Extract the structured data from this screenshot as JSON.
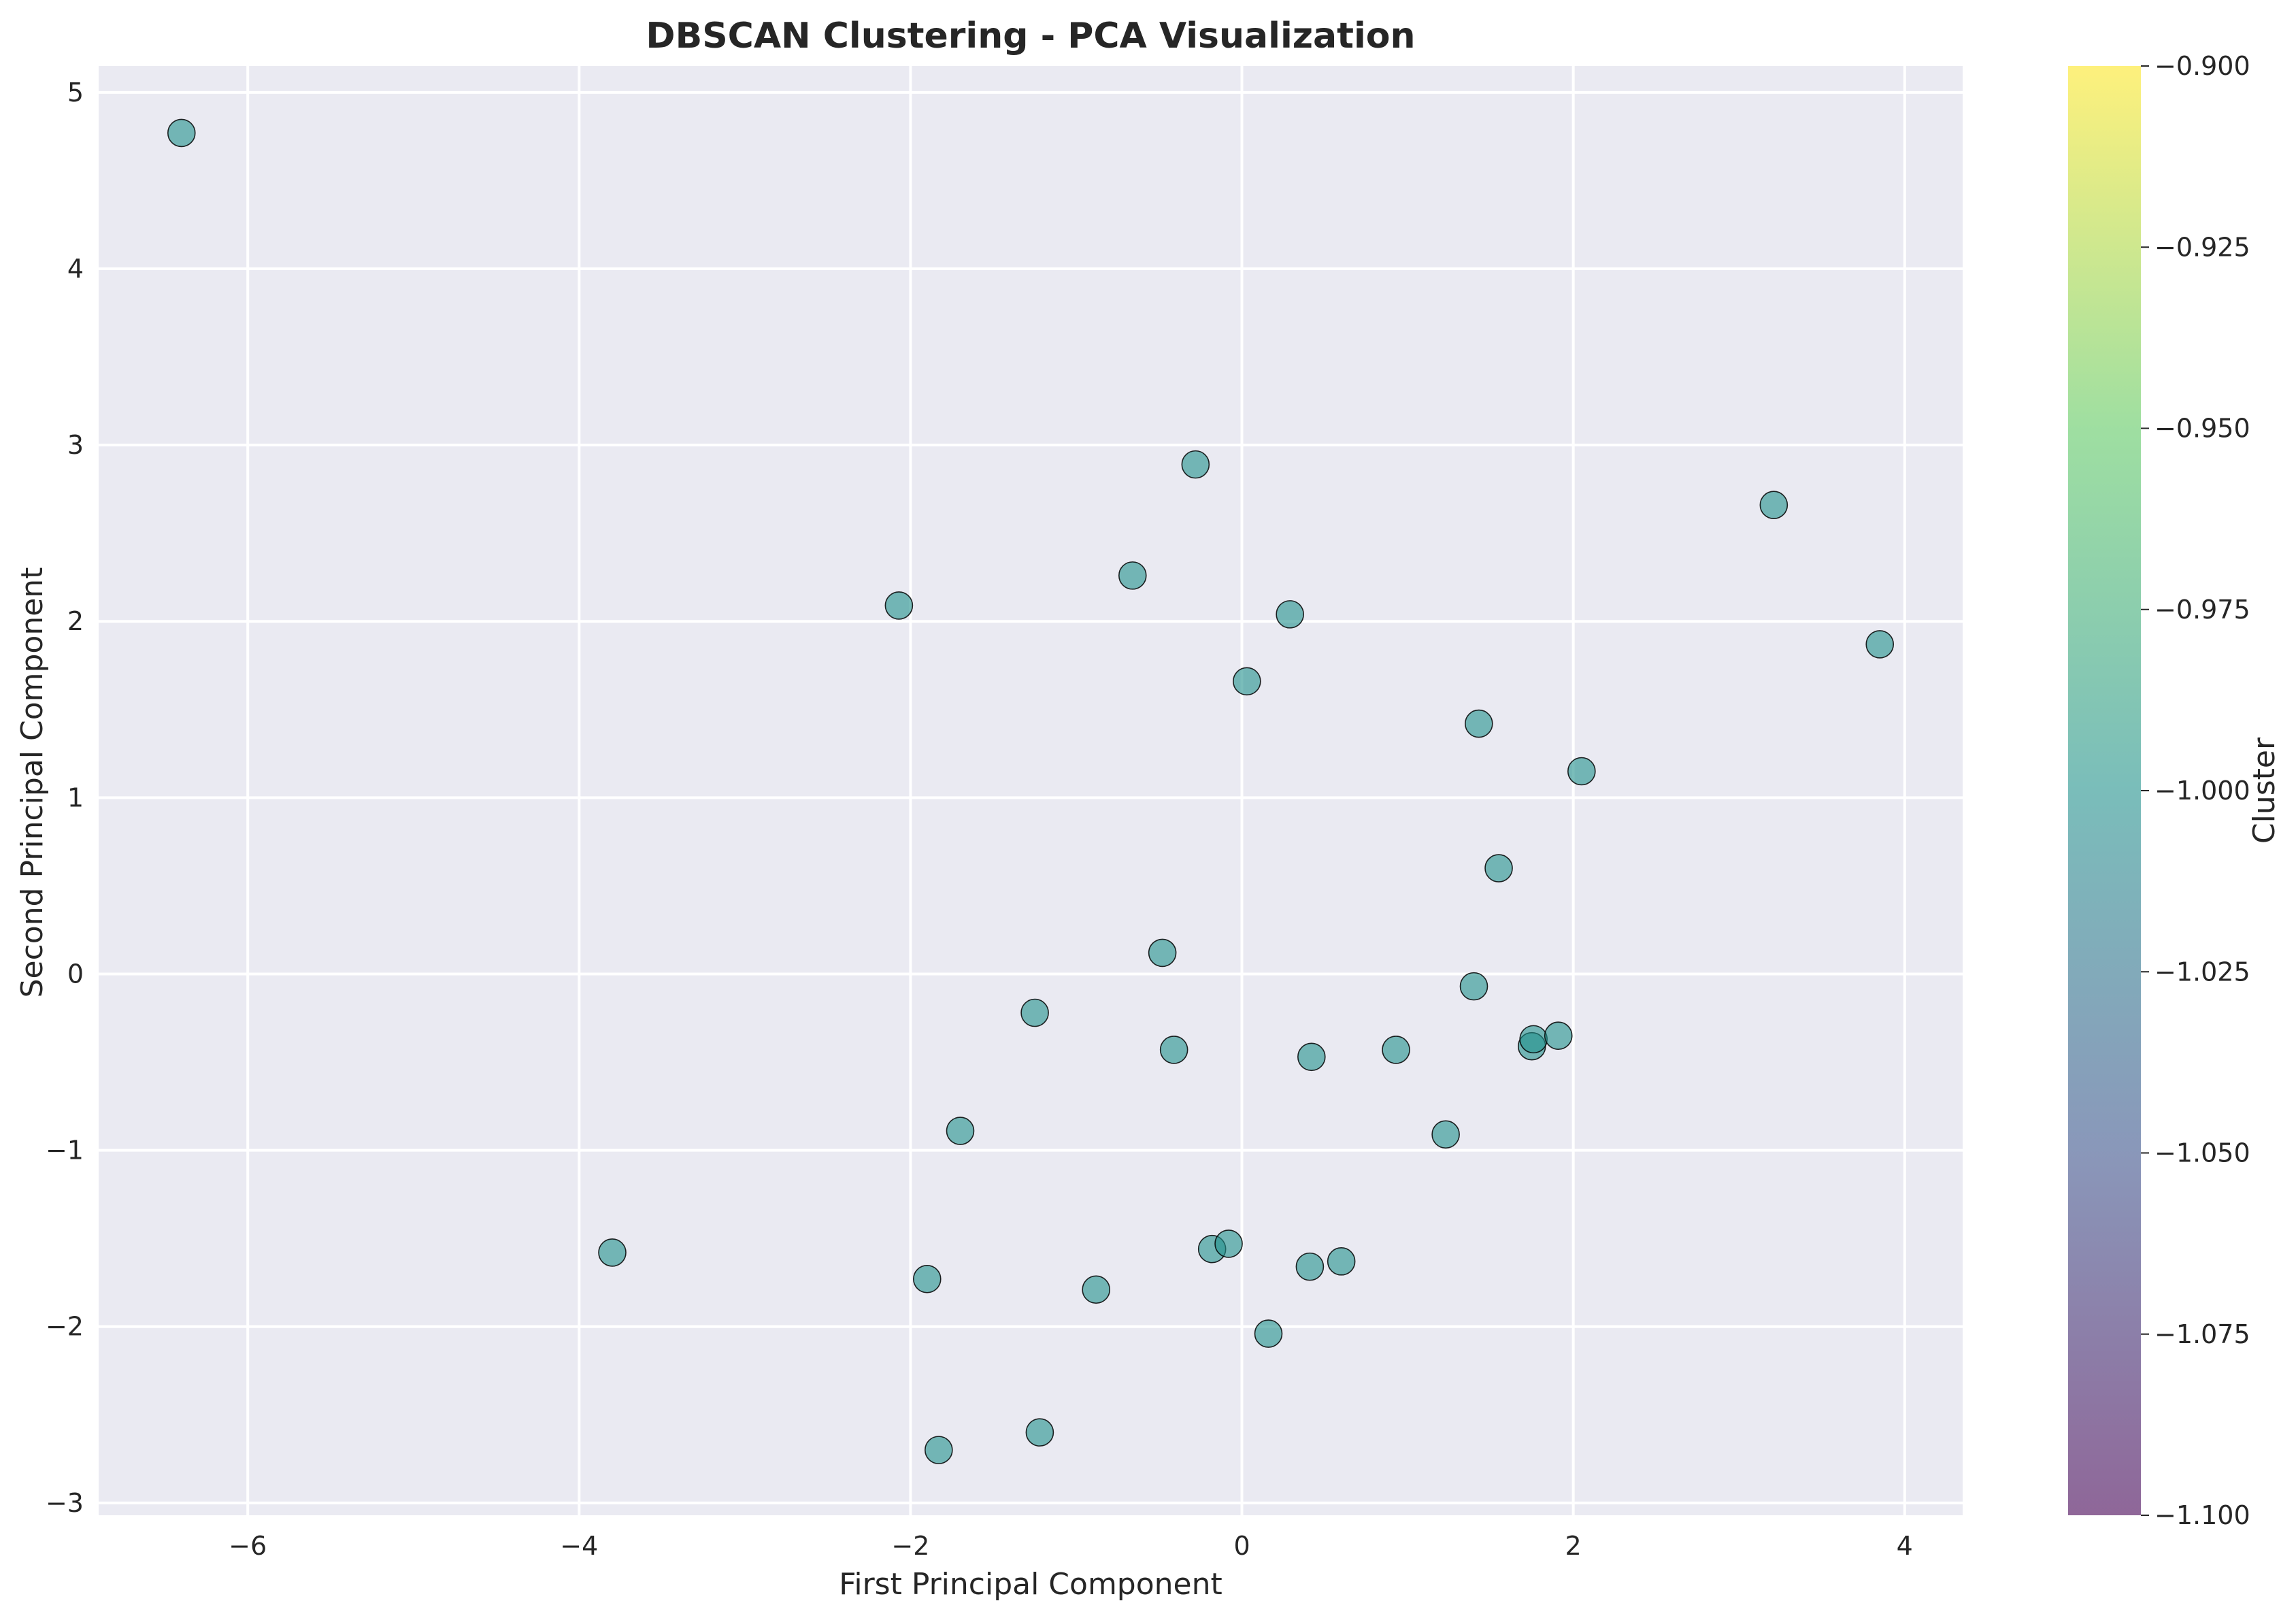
{
  "chart_data": {
    "type": "scatter",
    "title": "DBSCAN Clustering - PCA Visualization",
    "xlabel": "First Principal Component",
    "ylabel": "Second Principal Component",
    "xlim": [
      -6.9,
      4.35
    ],
    "ylim": [
      -3.07,
      5.15
    ],
    "xticks": [
      -6,
      -4,
      -2,
      0,
      2,
      4
    ],
    "yticks": [
      -3,
      -2,
      -1,
      0,
      1,
      2,
      3,
      4,
      5
    ],
    "grid": true,
    "legend": "none",
    "point_color": "#21918c",
    "plot_background": "#eaeaf2",
    "colorbar": {
      "label": "Cluster",
      "range": [
        -1.1,
        -0.9
      ],
      "ticks": [
        "-0.900",
        "-0.925",
        "-0.950",
        "-0.975",
        "-1.000",
        "-1.025",
        "-1.050",
        "-1.075",
        "-1.100"
      ],
      "tick_values": [
        -0.9,
        -0.925,
        -0.95,
        -0.975,
        -1.0,
        -1.025,
        -1.05,
        -1.075,
        -1.1
      ],
      "colormap": "viridis",
      "colors": [
        "#440154",
        "#3b528b",
        "#21918c",
        "#5ec962",
        "#fde725"
      ]
    },
    "points": [
      {
        "x": -6.4,
        "y": 4.77
      },
      {
        "x": -3.8,
        "y": -1.58
      },
      {
        "x": -2.07,
        "y": 2.09
      },
      {
        "x": -1.9,
        "y": -1.73
      },
      {
        "x": -1.83,
        "y": -2.7
      },
      {
        "x": -1.7,
        "y": -0.89
      },
      {
        "x": -1.25,
        "y": -0.22
      },
      {
        "x": -1.22,
        "y": -2.6
      },
      {
        "x": -0.88,
        "y": -1.79
      },
      {
        "x": -0.66,
        "y": 2.26
      },
      {
        "x": -0.48,
        "y": 0.12
      },
      {
        "x": -0.41,
        "y": -0.43
      },
      {
        "x": -0.28,
        "y": 2.89
      },
      {
        "x": -0.18,
        "y": -1.56
      },
      {
        "x": -0.08,
        "y": -1.53
      },
      {
        "x": 0.03,
        "y": 1.66
      },
      {
        "x": 0.16,
        "y": -2.04
      },
      {
        "x": 0.29,
        "y": 2.04
      },
      {
        "x": 0.41,
        "y": -1.66
      },
      {
        "x": 0.42,
        "y": -0.47
      },
      {
        "x": 0.6,
        "y": -1.63
      },
      {
        "x": 0.93,
        "y": -0.43
      },
      {
        "x": 1.23,
        "y": -0.91
      },
      {
        "x": 1.4,
        "y": -0.07
      },
      {
        "x": 1.43,
        "y": 1.42
      },
      {
        "x": 1.55,
        "y": 0.6
      },
      {
        "x": 1.75,
        "y": -0.41
      },
      {
        "x": 1.76,
        "y": -0.37
      },
      {
        "x": 1.91,
        "y": -0.35
      },
      {
        "x": 2.05,
        "y": 1.15
      },
      {
        "x": 3.21,
        "y": 2.66
      },
      {
        "x": 3.85,
        "y": 1.87
      }
    ]
  }
}
